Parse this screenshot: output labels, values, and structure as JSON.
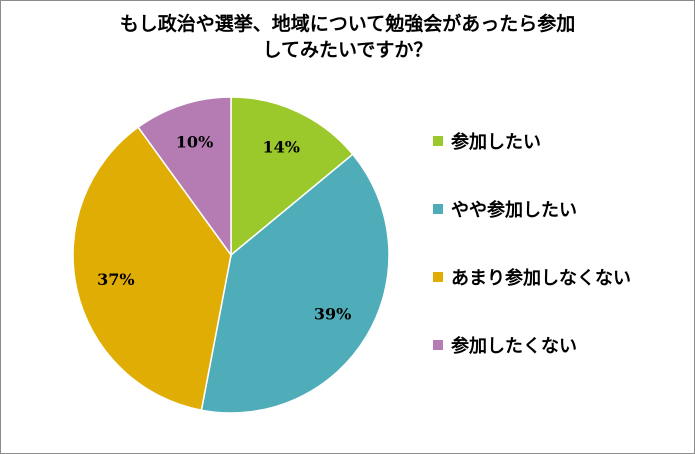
{
  "chart_data": {
    "type": "pie",
    "title_lines": [
      "もし政治や選挙、地域について勉強会があったら参加",
      "してみたいですか？"
    ],
    "categories": [
      "参加したい",
      "やや参加したい",
      "あまり参加しなくない",
      "参加したくない"
    ],
    "values": [
      14,
      39,
      37,
      10
    ],
    "value_labels": [
      "14%",
      "39%",
      "37%",
      "10%"
    ],
    "colors": [
      "#9bc82a",
      "#4fadb9",
      "#e0ad05",
      "#b57cb4"
    ],
    "start_angle_deg": 0,
    "direction": "clockwise",
    "legend_position": "right"
  }
}
